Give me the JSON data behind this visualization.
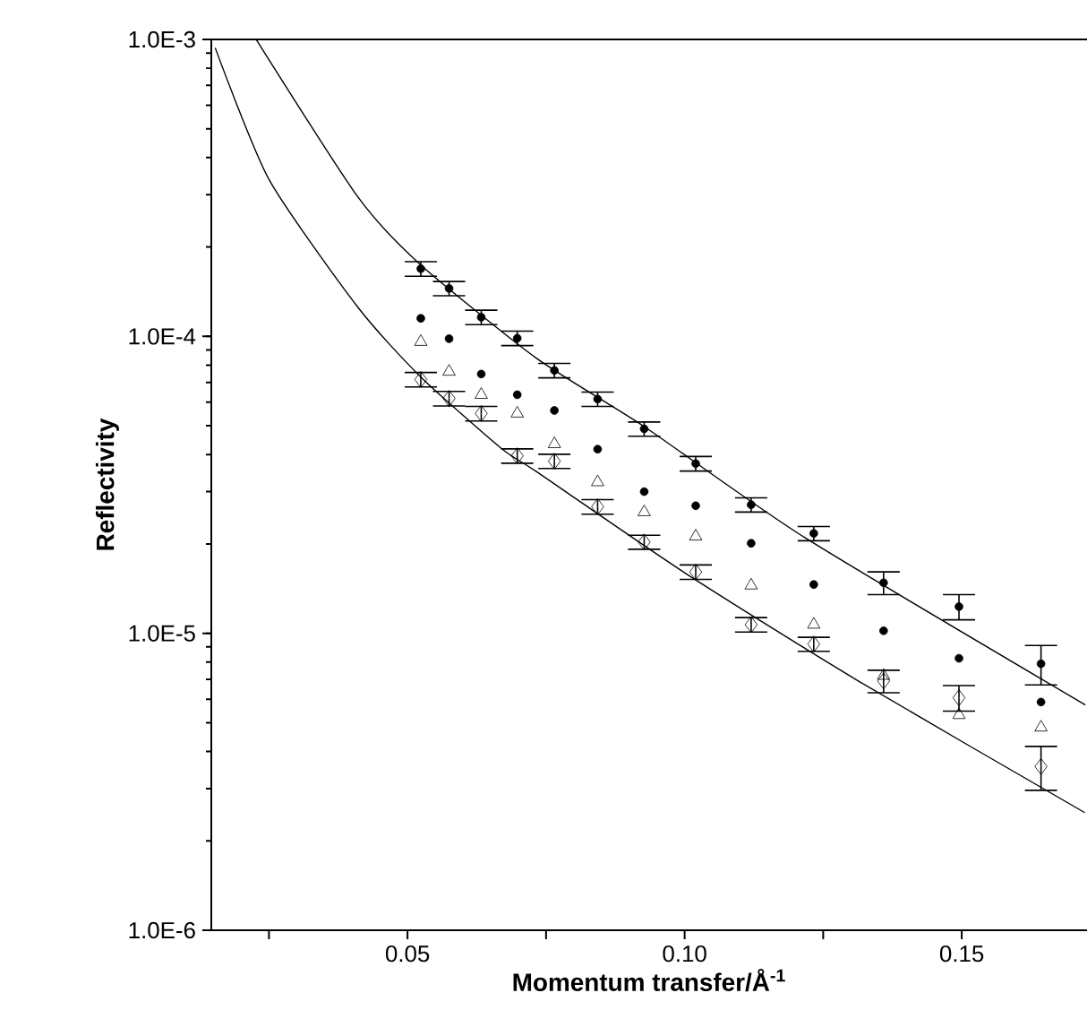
{
  "chart_data": {
    "type": "scatter",
    "xlabel": "Momentum transfer/Å$^{-1}$",
    "ylabel": "Reflectivity",
    "log": "y",
    "xlim": [
      0.0146,
      0.1726
    ],
    "ylim": [
      1e-06,
      0.001
    ],
    "xticks": [
      {
        "value": 0.025,
        "label": null
      },
      {
        "value": 0.05,
        "label": "0.05"
      },
      {
        "value": 0.075,
        "label": null
      },
      {
        "value": 0.1,
        "label": "0.10"
      },
      {
        "value": 0.125,
        "label": null
      },
      {
        "value": 0.15,
        "label": "0.15"
      }
    ],
    "yticks": [
      {
        "value": 1e-06,
        "label": "1.0E-6"
      },
      {
        "value": 1e-05,
        "label": "1.0E-5"
      },
      {
        "value": 0.0001,
        "label": "1.0E-4"
      },
      {
        "value": 0.001,
        "label": "1.0E-3"
      }
    ],
    "x": [
      0.0524,
      0.0575,
      0.0633,
      0.0698,
      0.0765,
      0.0843,
      0.0927,
      0.102,
      0.112,
      0.1233,
      0.1359,
      0.1495,
      0.1643
    ],
    "series": [
      {
        "color": "#000000",
        "marker": "circle",
        "values": [
          0.000169,
          0.000145,
          0.000116,
          9.86e-05,
          7.68e-05,
          6.15e-05,
          4.88e-05,
          3.73e-05,
          2.71e-05,
          2.17e-05,
          1.48e-05,
          1.23e-05,
          7.9e-06
        ],
        "errors": [
          9.5e-06,
          8e-06,
          6.5e-06,
          5.5e-06,
          4.3e-06,
          3.4e-06,
          2.7e-06,
          2.1e-06,
          1.5e-06,
          1.2e-06,
          1.3e-06,
          1.2e-06,
          1.2e-06
        ]
      },
      {
        "color": "#000000",
        "marker": "circle",
        "values": [
          0.000115,
          9.82e-05,
          7.47e-05,
          6.36e-05,
          5.63e-05,
          4.17e-05,
          3e-05,
          2.69e-05,
          2.01e-05,
          1.46e-05,
          1.02e-05,
          8.24e-06,
          5.87e-06
        ]
      },
      {
        "color": "#000000",
        "marker": "triangle",
        "values": [
          9.59e-05,
          7.61e-05,
          6.36e-05,
          5.5e-05,
          4.34e-05,
          3.23e-05,
          2.56e-05,
          2.12e-05,
          1.45e-05,
          1.07e-05,
          7.2e-06,
          5.31e-06,
          4.82e-06
        ]
      },
      {
        "color": "#000000",
        "marker": "diamond",
        "values": [
          7.16e-05,
          6.18e-05,
          5.5e-05,
          3.96e-05,
          3.8e-05,
          2.67e-05,
          2.03e-05,
          1.61e-05,
          1.07e-05,
          9.2e-06,
          6.91e-06,
          6.07e-06,
          3.56e-06
        ],
        "errors": [
          4e-06,
          3.5e-06,
          3.1e-06,
          2.2e-06,
          2.1e-06,
          1.5e-06,
          1.1e-06,
          9e-07,
          6e-07,
          5e-07,
          6e-07,
          6e-07,
          6e-07
        ]
      },
      {
        "type": "line",
        "color": "#000000",
        "marker": "none",
        "x": [
          0.0227,
          0.0411,
          0.0524,
          0.0733,
          0.0927,
          0.1217,
          0.1723
        ],
        "values": [
          0.001,
          0.000294,
          0.000174,
          8.43e-05,
          4.97e-05,
          2.1e-05,
          5.74e-06
        ]
      },
      {
        "type": "line",
        "color": "#000000",
        "marker": "none",
        "x": [
          0.0153,
          0.025,
          0.0411,
          0.0524,
          0.0669,
          0.0733,
          0.1,
          0.1314,
          0.1722
        ],
        "values": [
          0.000937,
          0.000338,
          0.000125,
          7.3e-05,
          4.2e-05,
          3.5e-05,
          1.6e-05,
          6.9e-06,
          2.49e-06
        ]
      }
    ]
  }
}
